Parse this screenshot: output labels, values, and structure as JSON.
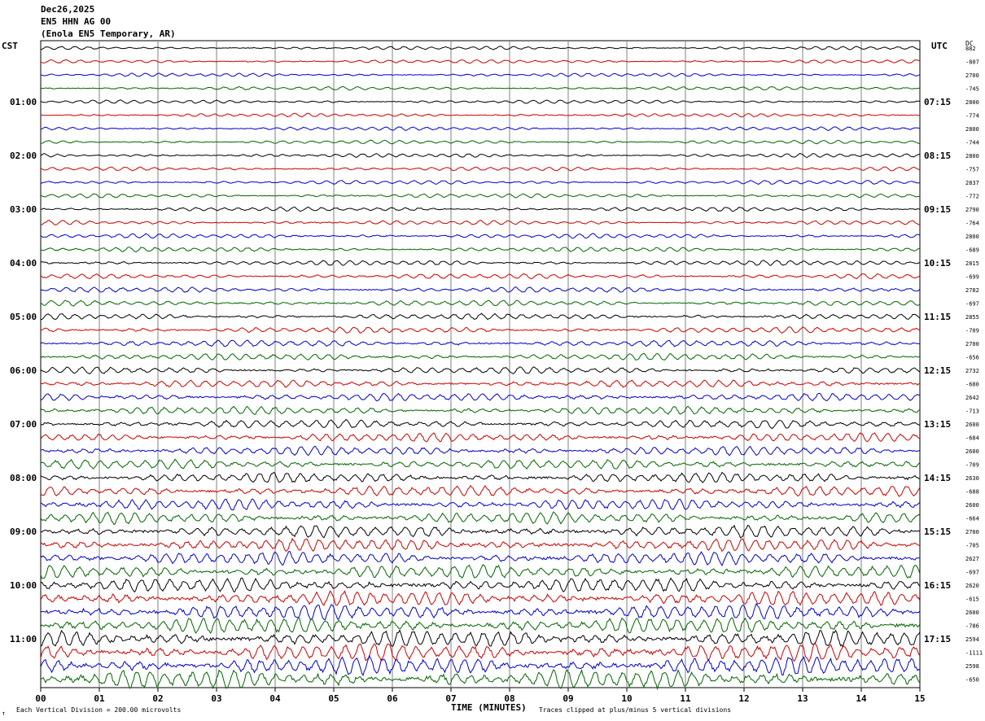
{
  "header": {
    "date": "Dec26,2025",
    "station": "EN5 HHN AG 00",
    "location": "(Enola EN5 Temporary, AR)"
  },
  "chart_data": {
    "type": "line",
    "left_timezone": "CST",
    "right_timezone": "UTC",
    "dc_label": "DC",
    "xlabel": "TIME (MINUTES)",
    "x_ticks": [
      "00",
      "01",
      "02",
      "03",
      "04",
      "05",
      "06",
      "07",
      "08",
      "09",
      "10",
      "11",
      "12",
      "13",
      "14",
      "15"
    ],
    "xlim": [
      0,
      15
    ],
    "left_hour_labels": [
      "01:00",
      "02:00",
      "03:00",
      "04:00",
      "05:00",
      "06:00",
      "07:00",
      "08:00",
      "09:00",
      "10:00",
      "11:00"
    ],
    "right_hour_labels": [
      "07:15",
      "08:15",
      "09:15",
      "10:15",
      "11:15",
      "12:15",
      "13:15",
      "14:15",
      "15:15",
      "16:15",
      "17:15"
    ],
    "trace_colors": [
      "#000000",
      "#cc0000",
      "#0000cc",
      "#006600"
    ],
    "dc_offsets": [
      "882",
      "-807",
      "2700",
      "-745",
      "2800",
      "-774",
      "2800",
      "-744",
      "2800",
      "-757",
      "2837",
      "-772",
      "2790",
      "-764",
      "2800",
      "-689",
      "2815",
      "-699",
      "2782",
      "-697",
      "2855",
      "-709",
      "2700",
      "-656",
      "2732",
      "-680",
      "2642",
      "-713",
      "2600",
      "-684",
      "2600",
      "-709",
      "2630",
      "-688",
      "2600",
      "-664",
      "2700",
      "-705",
      "2627",
      "-697",
      "2620",
      "-615",
      "2600",
      "-786",
      "2594",
      "-1111",
      "2598",
      "-650"
    ],
    "footer_left": "Each Vertical Division =  200.00 microvolts",
    "footer_right": "Traces clipped at plus/minus 5 vertical divisions"
  }
}
